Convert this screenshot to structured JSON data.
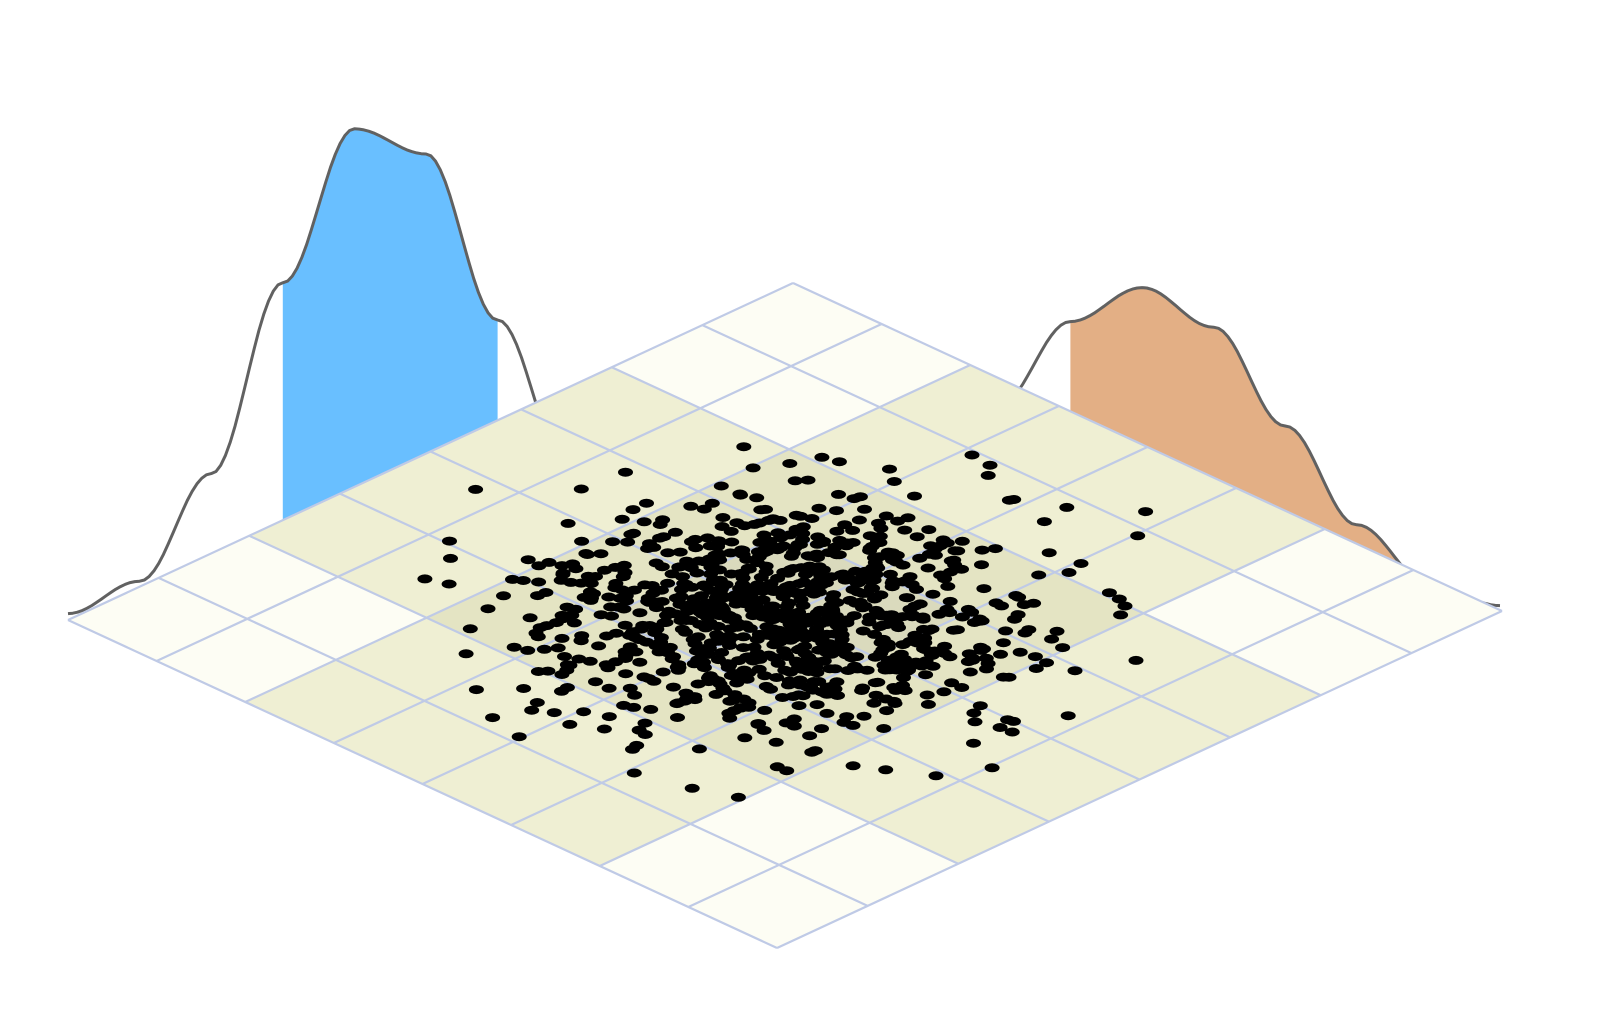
{
  "colors": {
    "background": "#ffffff",
    "floor_base": "#fdfdf4",
    "floor_band": "#f1f1dd",
    "floor_core": "#dcdcc6",
    "grid_line": "#bfcae6",
    "curve_line": "#616161",
    "band_left": "#69bfff",
    "band_right": "#e3af85",
    "dots": "#000000"
  },
  "icons": [
    "scatter-dots",
    "density-curve"
  ],
  "chart_data": {
    "type": "scatter",
    "title": "",
    "xlabel": "",
    "ylabel": "",
    "view": "isometric",
    "grid": true,
    "xlim": [
      -5,
      5
    ],
    "ylim": [
      -5,
      5
    ],
    "point_count": 1000,
    "point_distribution": {
      "kind": "bivariate-normal",
      "mean": [
        0,
        0
      ],
      "sd": [
        1.25,
        1.25
      ]
    },
    "floor_shading": {
      "inner_band": [
        -1.25,
        1.25
      ],
      "outer_band": [
        -2.5,
        2.5
      ]
    },
    "back_curve": {
      "type": "area",
      "x": [
        -5.0,
        -4.5,
        -4.0,
        -3.5,
        -3.0,
        -2.5,
        -2.0,
        -1.5,
        -1.0,
        -0.5,
        0.0,
        0.5,
        1.0,
        1.5,
        2.0,
        2.5,
        3.0,
        3.5,
        4.0,
        4.5,
        5.0
      ],
      "y": [
        0.004,
        0.024,
        0.091,
        0.21,
        0.306,
        0.29,
        0.186,
        0.092,
        0.052,
        0.046,
        0.054,
        0.066,
        0.087,
        0.131,
        0.183,
        0.204,
        0.179,
        0.117,
        0.055,
        0.018,
        0.004
      ],
      "ylim": [
        0,
        0.35
      ],
      "highlighted_ranges": [
        {
          "from": -3.5,
          "to": -2.0,
          "color": "#69bfff"
        },
        {
          "from": 2.0,
          "to": 4.9,
          "color": "#e3af85"
        }
      ]
    }
  }
}
